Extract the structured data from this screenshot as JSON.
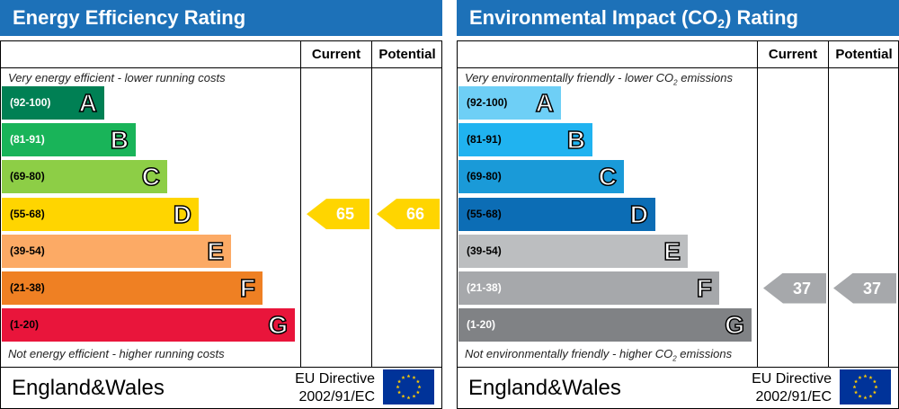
{
  "energy": {
    "title": "Energy Efficiency Rating",
    "col_current": "Current",
    "col_potential": "Potential",
    "note_top": "Very energy efficient - lower running costs",
    "note_bottom": "Not energy efficient - higher running costs",
    "bands": [
      {
        "range": "(92-100)",
        "letter": "A",
        "color": "#008054",
        "range_color": "#ffffff"
      },
      {
        "range": "(81-91)",
        "letter": "B",
        "color": "#19b459",
        "range_color": "#ffffff"
      },
      {
        "range": "(69-80)",
        "letter": "C",
        "color": "#8dce46",
        "range_color": "#000000"
      },
      {
        "range": "(55-68)",
        "letter": "D",
        "color": "#ffd500",
        "range_color": "#000000"
      },
      {
        "range": "(39-54)",
        "letter": "E",
        "color": "#fcaa65",
        "range_color": "#000000"
      },
      {
        "range": "(21-38)",
        "letter": "F",
        "color": "#ef8023",
        "range_color": "#000000"
      },
      {
        "range": "(1-20)",
        "letter": "G",
        "color": "#e9153b",
        "range_color": "#000000"
      }
    ],
    "current": {
      "value": "65",
      "band": "D",
      "color": "#ffd500"
    },
    "potential": {
      "value": "66",
      "band": "D",
      "color": "#ffd500"
    },
    "region": "England&Wales",
    "directive_line1": "EU Directive",
    "directive_line2": "2002/91/EC"
  },
  "environment": {
    "title_main": "Environmental Impact (CO",
    "title_sub": "2",
    "title_end": ") Rating",
    "col_current": "Current",
    "col_potential": "Potential",
    "note_top_main": "Very environmentally friendly - lower CO",
    "note_top_sub": "2",
    "note_top_end": " emissions",
    "note_bottom_main": "Not environmentally friendly - higher CO",
    "note_bottom_sub": "2",
    "note_bottom_end": " emissions",
    "bands": [
      {
        "range": "(92-100)",
        "letter": "A",
        "color": "#6ecff6",
        "range_color": "#000000"
      },
      {
        "range": "(81-91)",
        "letter": "B",
        "color": "#20b3f0",
        "range_color": "#000000"
      },
      {
        "range": "(69-80)",
        "letter": "C",
        "color": "#1a9ad8",
        "range_color": "#000000"
      },
      {
        "range": "(55-68)",
        "letter": "D",
        "color": "#0c6db5",
        "range_color": "#000000"
      },
      {
        "range": "(39-54)",
        "letter": "E",
        "color": "#bcbec0",
        "range_color": "#000000"
      },
      {
        "range": "(21-38)",
        "letter": "F",
        "color": "#a6a8ab",
        "range_color": "#ffffff"
      },
      {
        "range": "(1-20)",
        "letter": "G",
        "color": "#808285",
        "range_color": "#ffffff"
      }
    ],
    "current": {
      "value": "37",
      "band": "F",
      "color": "#a6a8ab"
    },
    "potential": {
      "value": "37",
      "band": "F",
      "color": "#a6a8ab"
    },
    "region": "England&Wales",
    "directive_line1": "EU Directive",
    "directive_line2": "2002/91/EC"
  }
}
